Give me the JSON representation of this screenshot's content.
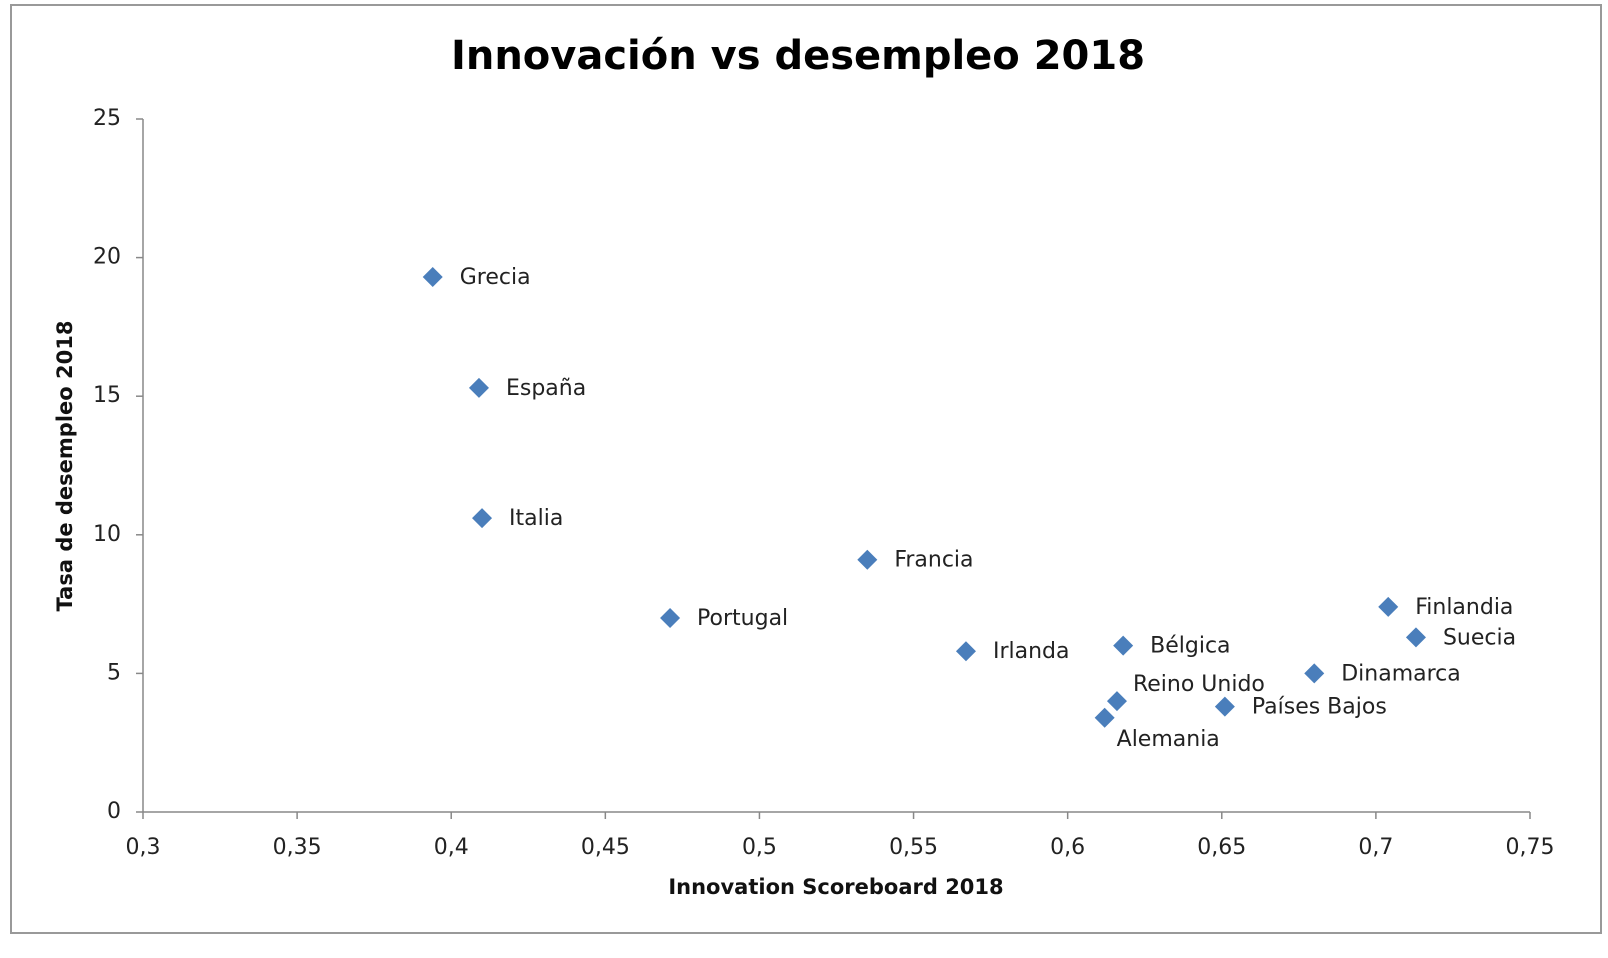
{
  "chart_data": {
    "type": "scatter",
    "title": "Innovación vs desempleo 2018",
    "x_label": "Innovation Scoreboard 2018",
    "y_label": "Tasa de desempleo 2018",
    "series": [
      {
        "color": "#4a7ebb",
        "labels": [
          "Grecia",
          "España",
          "Italia",
          "Francia",
          "Portugal",
          "Irlanda",
          "Bélgica",
          "Reino Unido",
          "Alemania",
          "Países Bajos",
          "Dinamarca",
          "Finlandia",
          "Suecia"
        ],
        "x": [
          0.394,
          0.409,
          0.41,
          0.535,
          0.471,
          0.567,
          0.618,
          0.616,
          0.612,
          0.651,
          0.68,
          0.704,
          0.713
        ],
        "values": [
          19.3,
          15.3,
          10.6,
          9.1,
          7.0,
          5.8,
          6.0,
          4.0,
          3.4,
          3.8,
          5.0,
          7.4,
          6.3
        ]
      }
    ],
    "xlim": [
      0.3,
      0.75
    ],
    "xticks": [
      {
        "value": 0.3,
        "label": "0,3"
      },
      {
        "value": 0.35,
        "label": "0,35"
      },
      {
        "value": 0.4,
        "label": "0,4"
      },
      {
        "value": 0.45,
        "label": "0,45"
      },
      {
        "value": 0.5,
        "label": "0,5"
      },
      {
        "value": 0.55,
        "label": "0,55"
      },
      {
        "value": 0.6,
        "label": "0,6"
      },
      {
        "value": 0.65,
        "label": "0,65"
      },
      {
        "value": 0.7,
        "label": "0,7"
      },
      {
        "value": 0.75,
        "label": "0,75"
      }
    ],
    "ylim": [
      0,
      25
    ],
    "yticks": [
      0,
      5,
      10,
      15,
      20,
      25
    ]
  }
}
